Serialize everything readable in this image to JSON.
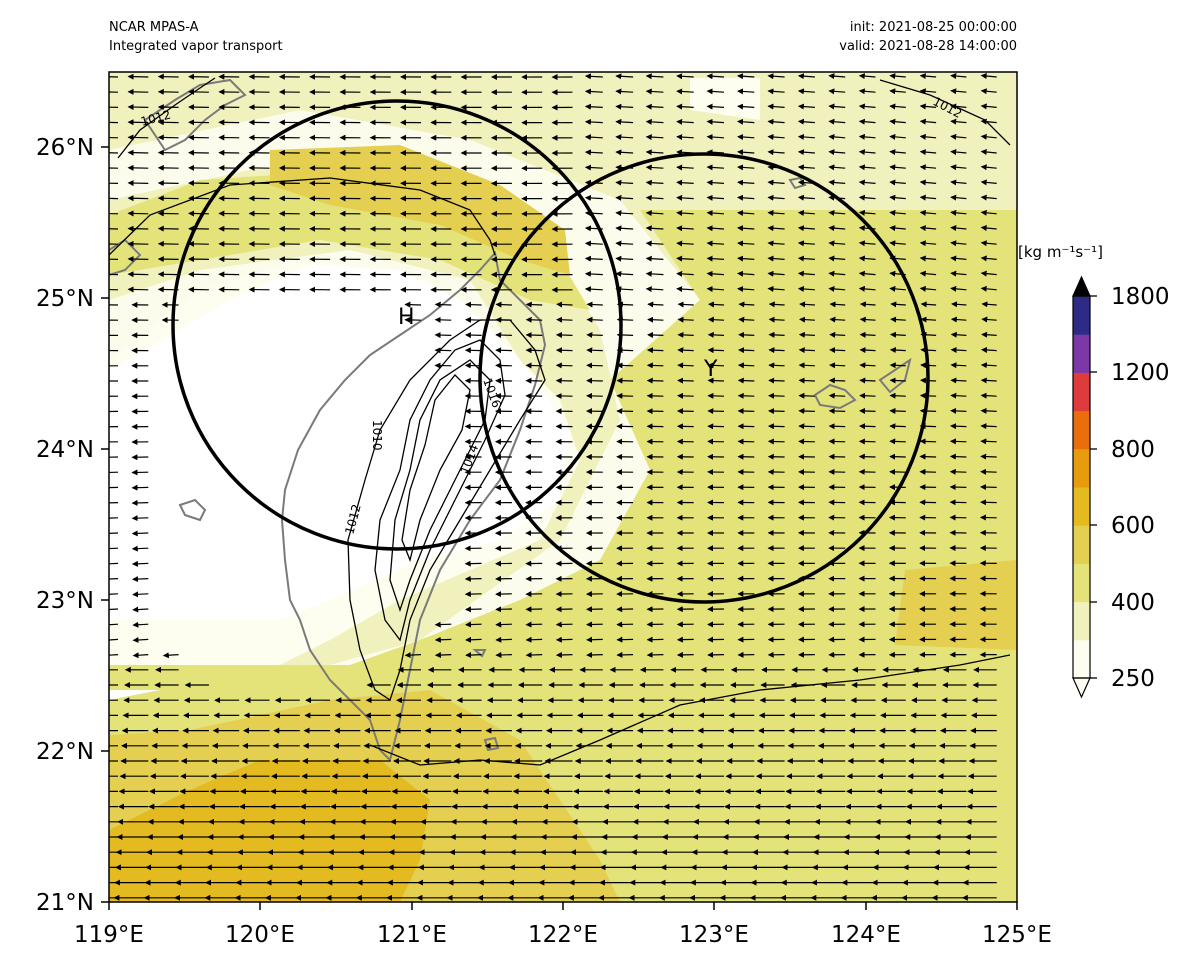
{
  "header": {
    "model": "NCAR MPAS-A",
    "field": "Integrated vapor transport",
    "init": "init: 2021-08-25 00:00:00",
    "valid": "valid: 2021-08-28 14:00:00"
  },
  "map": {
    "lon_range": [
      119,
      125
    ],
    "lat_range": [
      21,
      26.5
    ],
    "x_ticks": [
      "119°E",
      "120°E",
      "121°E",
      "122°E",
      "123°E",
      "124°E",
      "125°E"
    ],
    "y_ticks": [
      "21°N",
      "22°N",
      "23°N",
      "24°N",
      "25°N",
      "26°N"
    ],
    "pressure_centers": [
      {
        "label": "H",
        "lon": 120.9,
        "lat": 24.85
      },
      {
        "label": "Y",
        "lon": 122.85,
        "lat": 24.45
      }
    ],
    "isobar_labels": [
      {
        "text": "1012",
        "lon": 119.35,
        "lat": 26.18
      },
      {
        "text": "1012",
        "lon": 124.3,
        "lat": 26.27
      },
      {
        "text": "1010",
        "lon": 120.8,
        "lat": 24.05
      },
      {
        "text": "1012",
        "lon": 120.7,
        "lat": 23.55
      },
      {
        "text": "1016",
        "lon": 121.6,
        "lat": 24.35
      },
      {
        "text": "1014",
        "lon": 121.45,
        "lat": 23.95
      }
    ],
    "circles": [
      {
        "center_lon": 120.93,
        "center_lat": 24.83,
        "radius_deg_lon": 1.48
      },
      {
        "center_lon": 122.93,
        "center_lat": 24.46,
        "radius_deg_lon": 1.49
      }
    ],
    "colors": {
      "ocean_low": "#fcfced",
      "land_outline": "#7a7a7a"
    }
  },
  "colorbar": {
    "unit": "[kg m⁻¹s⁻¹]",
    "labels": [
      "250",
      "400",
      "600",
      "800",
      "1200",
      "1800"
    ],
    "levels": [
      250,
      300,
      400,
      500,
      600,
      700,
      800,
      1000,
      1200,
      1500,
      1800
    ],
    "colors": [
      "#fefef0",
      "#f1f1bd",
      "#e4e37a",
      "#e5cf50",
      "#e4ba21",
      "#e79b0f",
      "#ea6f0c",
      "#de3b3d",
      "#7c38a6",
      "#2c2c86",
      "#000000"
    ]
  }
}
